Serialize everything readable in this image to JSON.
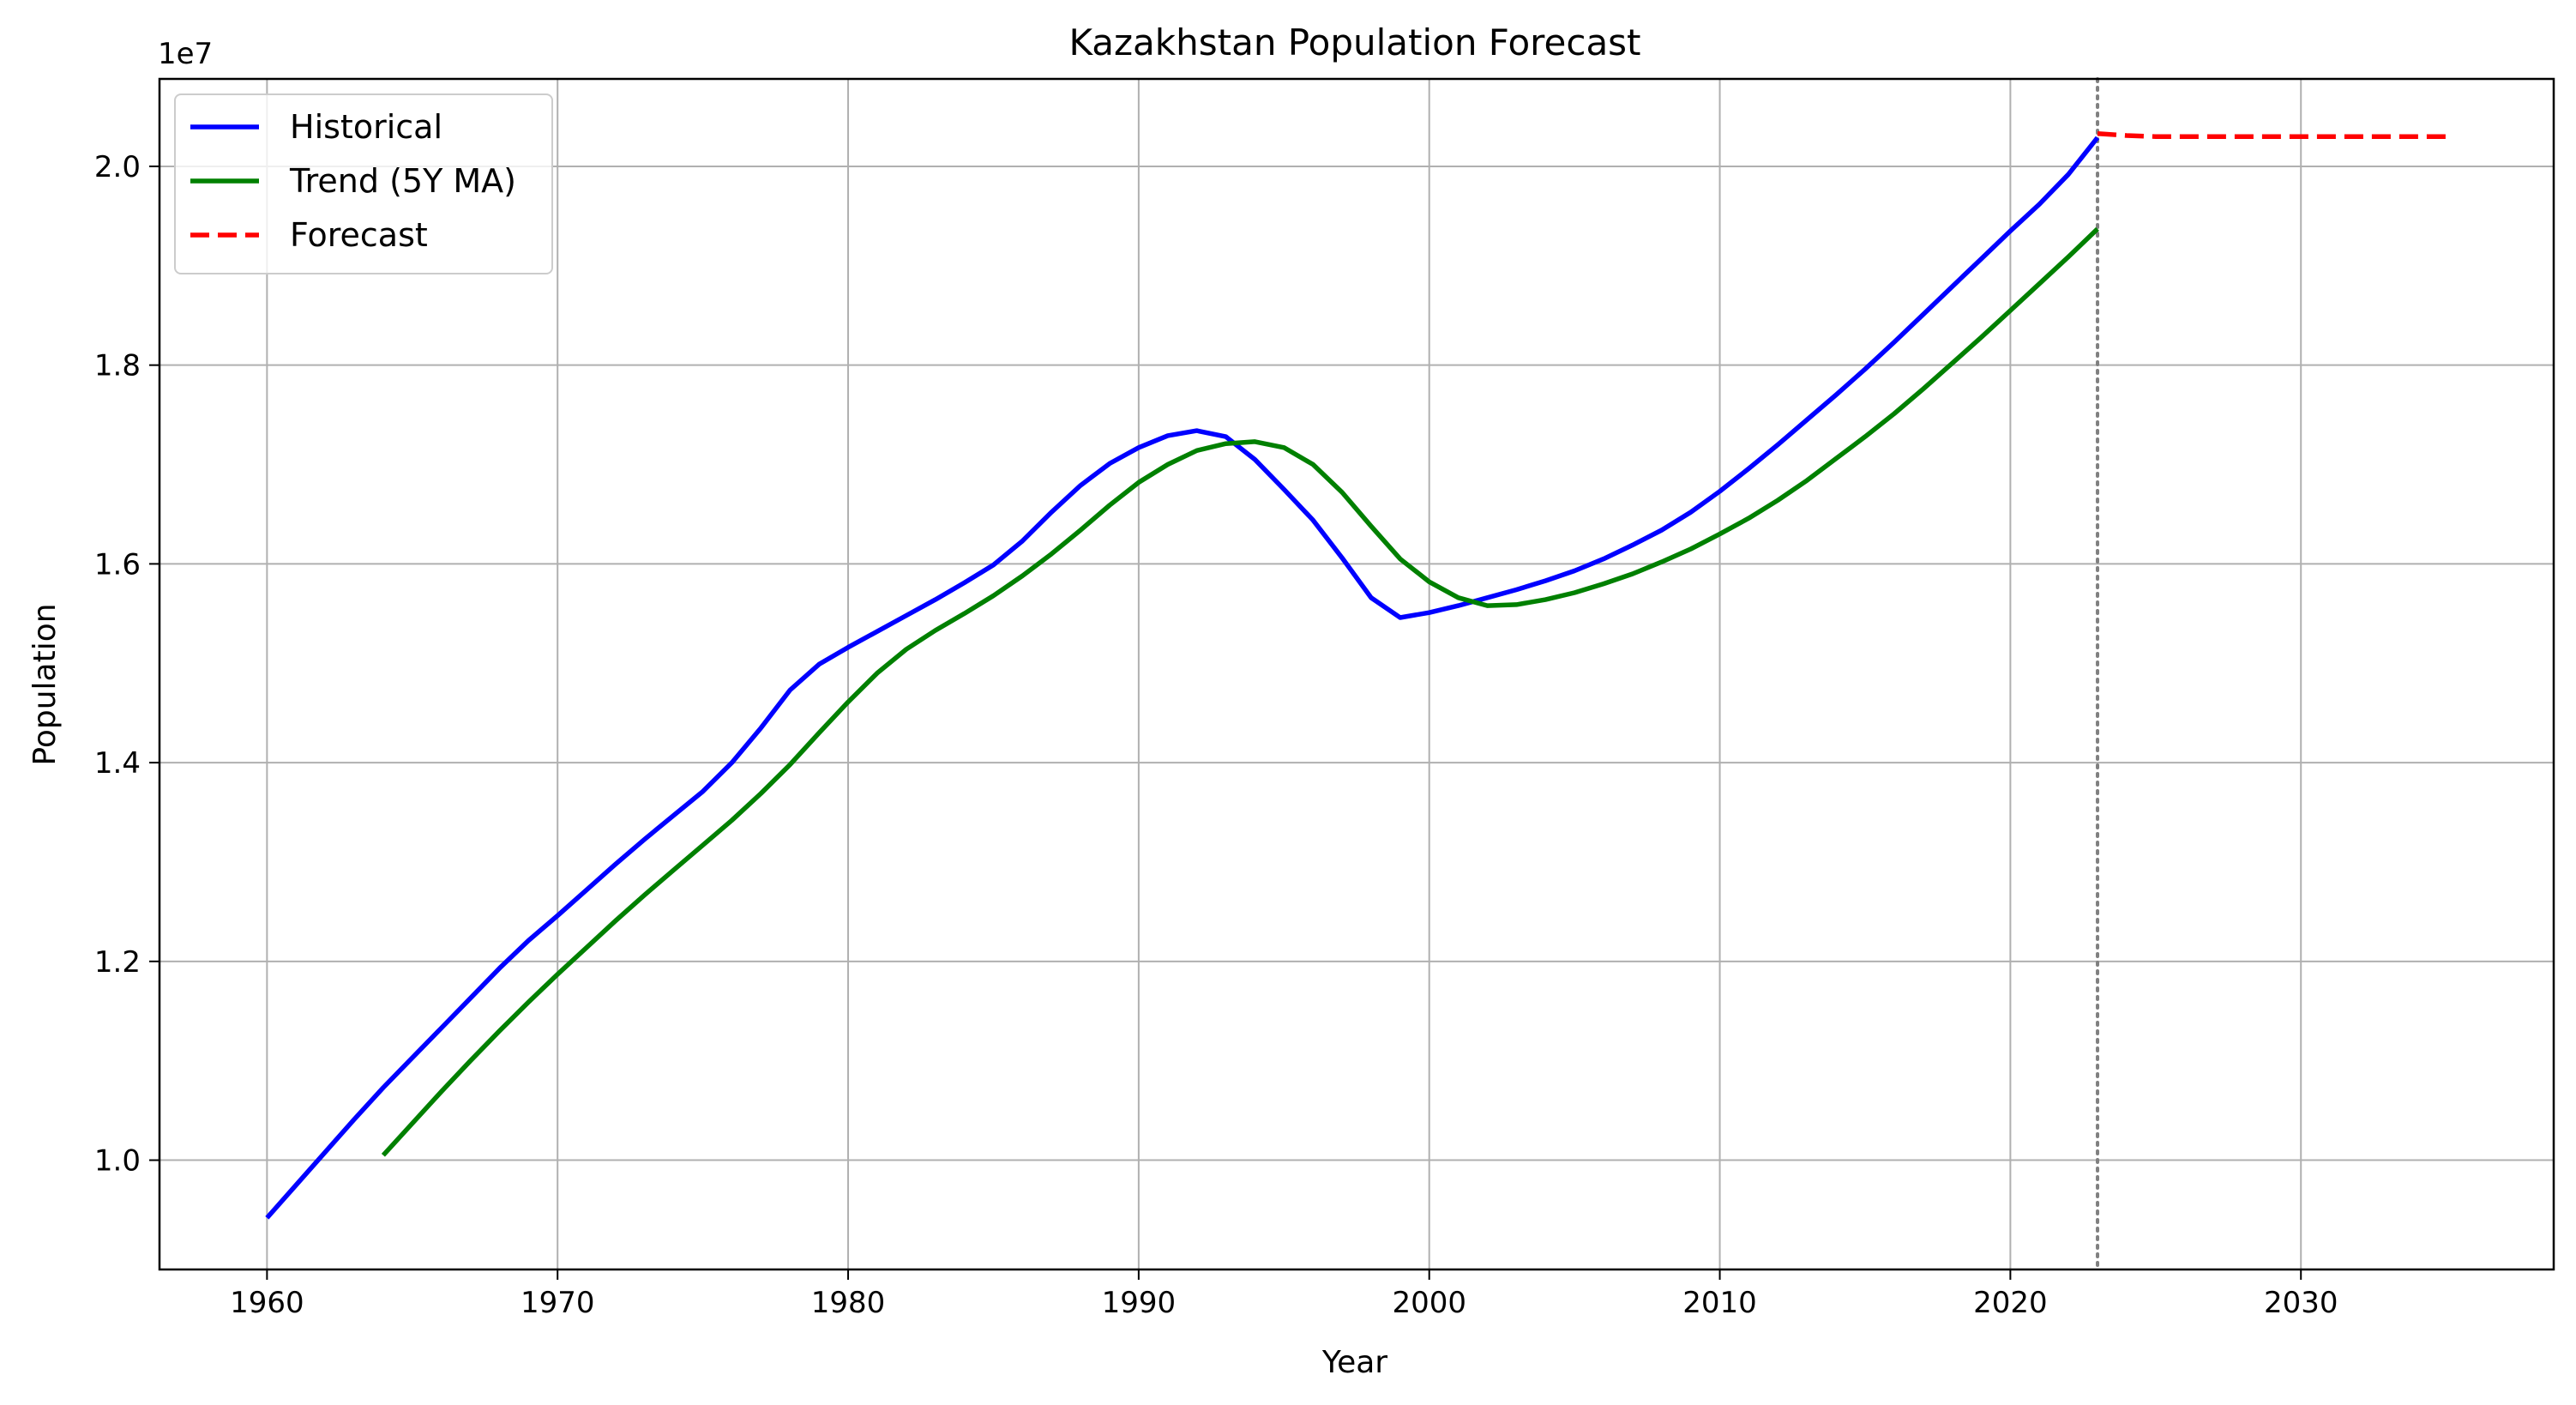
{
  "chart_data": {
    "type": "line",
    "title": "Kazakhstan Population Forecast",
    "xlabel": "Year",
    "ylabel": "Population",
    "y_offset_label": "1e7",
    "y_scale_factor": 10000000,
    "xlim": [
      1956.3,
      2038.7
    ],
    "ylim": [
      8900000,
      20880000
    ],
    "x_ticks": [
      1960,
      1970,
      1980,
      1990,
      2000,
      2010,
      2020,
      2030
    ],
    "y_ticks": [
      10000000,
      12000000,
      14000000,
      16000000,
      18000000,
      20000000
    ],
    "y_tick_labels": [
      "1.0",
      "1.2",
      "1.4",
      "1.6",
      "1.8",
      "2.0"
    ],
    "grid": true,
    "legend_position": "top-left",
    "forecast_start_marker": 2023,
    "series": [
      {
        "name": "Historical",
        "color": "#0000ff",
        "style": "solid",
        "x": [
          1960,
          1961,
          1962,
          1963,
          1964,
          1965,
          1966,
          1967,
          1968,
          1969,
          1970,
          1971,
          1972,
          1973,
          1974,
          1975,
          1976,
          1977,
          1978,
          1979,
          1980,
          1981,
          1982,
          1983,
          1984,
          1985,
          1986,
          1987,
          1988,
          1989,
          1990,
          1991,
          1992,
          1993,
          1994,
          1995,
          1996,
          1997,
          1998,
          1999,
          2000,
          2001,
          2002,
          2003,
          2004,
          2005,
          2006,
          2007,
          2008,
          2009,
          2010,
          2011,
          2012,
          2013,
          2014,
          2015,
          2016,
          2017,
          2018,
          2019,
          2020,
          2021,
          2022,
          2023
        ],
        "y": [
          9420000,
          9750000,
          10080000,
          10410000,
          10730000,
          11030000,
          11330000,
          11630000,
          11930000,
          12210000,
          12460000,
          12720000,
          12980000,
          13230000,
          13470000,
          13710000,
          14000000,
          14350000,
          14730000,
          14990000,
          15160000,
          15320000,
          15480000,
          15640000,
          15810000,
          15990000,
          16230000,
          16520000,
          16790000,
          17010000,
          17170000,
          17290000,
          17340000,
          17280000,
          17050000,
          16750000,
          16440000,
          16060000,
          15660000,
          15460000,
          15510000,
          15580000,
          15660000,
          15740000,
          15830000,
          15930000,
          16050000,
          16190000,
          16340000,
          16520000,
          16730000,
          16960000,
          17200000,
          17450000,
          17700000,
          17960000,
          18230000,
          18510000,
          18790000,
          19070000,
          19350000,
          19620000,
          19920000,
          20290000
        ]
      },
      {
        "name": "Trend (5Y MA)",
        "color": "#008000",
        "style": "solid",
        "x": [
          1964,
          1965,
          1966,
          1967,
          1968,
          1969,
          1970,
          1971,
          1972,
          1973,
          1974,
          1975,
          1976,
          1977,
          1978,
          1979,
          1980,
          1981,
          1982,
          1983,
          1984,
          1985,
          1986,
          1987,
          1988,
          1989,
          1990,
          1991,
          1992,
          1993,
          1994,
          1995,
          1996,
          1997,
          1998,
          1999,
          2000,
          2001,
          2002,
          2003,
          2004,
          2005,
          2006,
          2007,
          2008,
          2009,
          2010,
          2011,
          2012,
          2013,
          2014,
          2015,
          2016,
          2017,
          2018,
          2019,
          2020,
          2021,
          2022,
          2023
        ],
        "y": [
          10050000,
          10370000,
          10690000,
          11000000,
          11300000,
          11590000,
          11870000,
          12140000,
          12410000,
          12670000,
          12920000,
          13170000,
          13420000,
          13690000,
          13980000,
          14300000,
          14610000,
          14900000,
          15140000,
          15330000,
          15500000,
          15680000,
          15880000,
          16100000,
          16340000,
          16590000,
          16820000,
          17000000,
          17140000,
          17210000,
          17230000,
          17170000,
          17000000,
          16720000,
          16380000,
          16050000,
          15820000,
          15660000,
          15580000,
          15590000,
          15640000,
          15710000,
          15800000,
          15900000,
          16020000,
          16150000,
          16300000,
          16460000,
          16640000,
          16840000,
          17060000,
          17280000,
          17510000,
          17760000,
          18020000,
          18280000,
          18550000,
          18820000,
          19090000,
          19370000
        ]
      },
      {
        "name": "Forecast",
        "color": "#ff0000",
        "style": "dashed",
        "x": [
          2023,
          2024,
          2025,
          2026,
          2027,
          2028,
          2029,
          2030,
          2031,
          2032,
          2033,
          2034,
          2035
        ],
        "y": [
          20330000,
          20310000,
          20300000,
          20300000,
          20300000,
          20300000,
          20300000,
          20300000,
          20300000,
          20300000,
          20300000,
          20300000,
          20300000
        ]
      }
    ]
  }
}
